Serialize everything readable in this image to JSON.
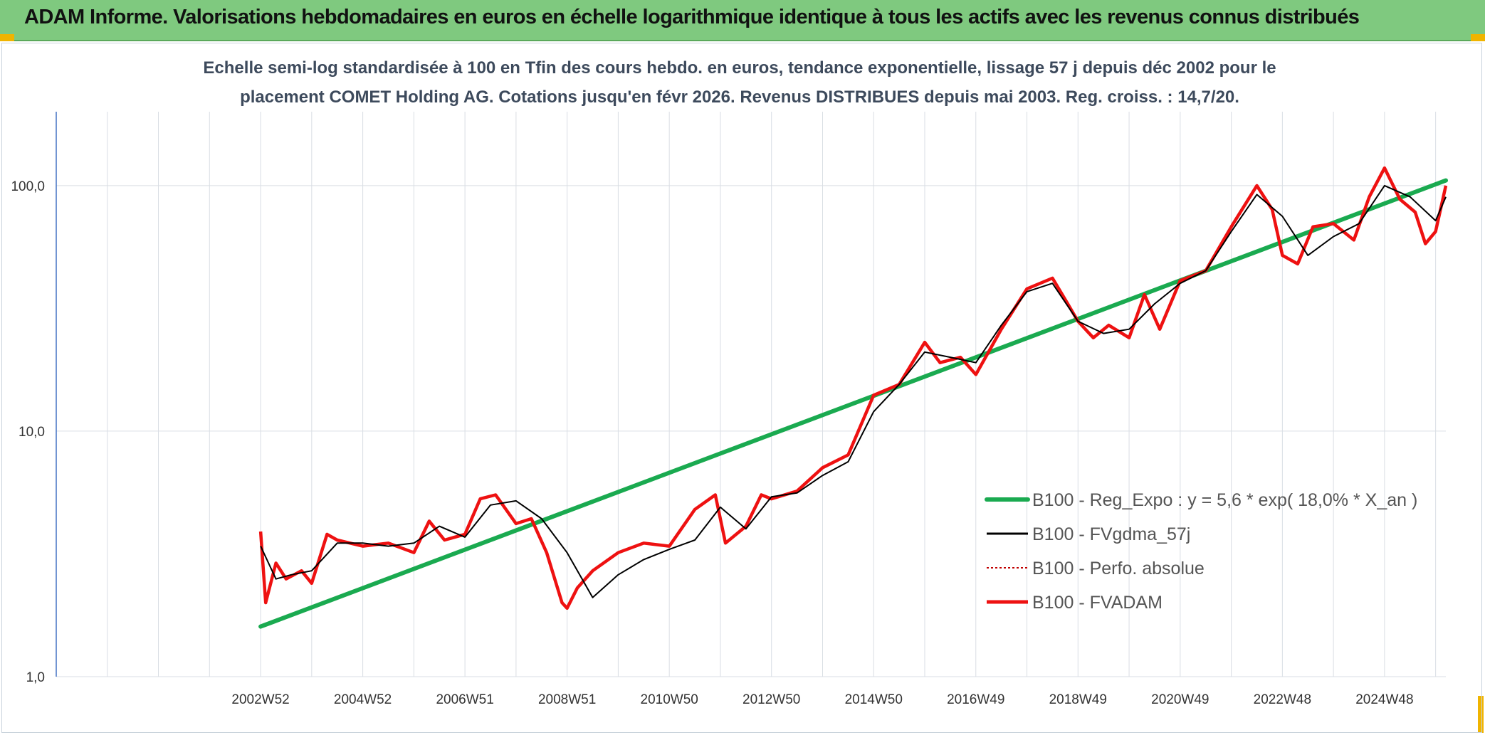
{
  "banner": {
    "title": "ADAM Informe. Valorisations hebdomadaires en euros en échelle logarithmique identique à tous les actifs avec les revenus connus distribués"
  },
  "colors": {
    "banner_bg": "#7fc97f",
    "trend": "#1aaa50",
    "smooth": "#000000",
    "perf": "#c00000",
    "fvadam": "#ee1111",
    "grid": "#d9dee4"
  },
  "chart_data": {
    "type": "line",
    "subtitle_lines": [
      "Echelle semi-log standardisée à 100 en Tfin des cours hebdo. en euros, tendance exponentielle, lissage 57 j depuis déc 2002 pour le",
      "placement COMET Holding AG. Cotations jusqu'en févr 2026. Revenus DISTRIBUES depuis mai 2003. Reg. croiss. : 14,7/20."
    ],
    "y_scale": "log",
    "ylim": [
      1,
      200
    ],
    "xlim": [
      1999.0,
      2026.2
    ],
    "y_ticks": [
      {
        "value": 1,
        "label": "1,0"
      },
      {
        "value": 10,
        "label": "10,0"
      },
      {
        "value": 100,
        "label": "100,0"
      }
    ],
    "x_tick_labels": [
      "2002W52",
      "2004W52",
      "2006W51",
      "2008W51",
      "2010W50",
      "2012W50",
      "2014W50",
      "2016W49",
      "2018W49",
      "2020W49",
      "2022W48",
      "2024W48"
    ],
    "x_tick_values": [
      2003.0,
      2005.0,
      2007.0,
      2009.0,
      2011.0,
      2013.0,
      2015.0,
      2017.0,
      2019.0,
      2021.0,
      2023.0,
      2025.0
    ],
    "grid": true,
    "legend_position": "bottom-right",
    "series": [
      {
        "name": "B100 - Reg_Expo : y = 5,6 * exp( 18,0% *  X_an )",
        "style": "trend",
        "x": [
          2003.0,
          2026.2
        ],
        "values": [
          1.6,
          105
        ]
      },
      {
        "name": "B100 - FVgdma_57j",
        "style": "smooth",
        "x": [
          2003.0,
          2003.3,
          2003.6,
          2004.0,
          2004.5,
          2005.0,
          2005.5,
          2006.0,
          2006.5,
          2007.0,
          2007.5,
          2008.0,
          2008.5,
          2009.0,
          2009.5,
          2010.0,
          2010.5,
          2011.0,
          2011.5,
          2012.0,
          2012.5,
          2013.0,
          2013.5,
          2014.0,
          2014.5,
          2015.0,
          2015.5,
          2016.0,
          2016.5,
          2017.0,
          2017.5,
          2018.0,
          2018.5,
          2019.0,
          2019.5,
          2020.0,
          2020.5,
          2021.0,
          2021.5,
          2022.0,
          2022.5,
          2023.0,
          2023.5,
          2024.0,
          2024.5,
          2025.0,
          2025.5,
          2026.0,
          2026.2
        ],
        "values": [
          3.4,
          2.5,
          2.6,
          2.7,
          3.5,
          3.5,
          3.4,
          3.5,
          4.1,
          3.7,
          5.0,
          5.2,
          4.4,
          3.2,
          2.1,
          2.6,
          3.0,
          3.3,
          3.6,
          4.9,
          4.0,
          5.4,
          5.6,
          6.6,
          7.5,
          12.0,
          15.5,
          21.0,
          20.0,
          19.0,
          27.0,
          37.0,
          40.0,
          28.0,
          25.0,
          26.0,
          33.0,
          40.0,
          45.0,
          65.0,
          92.0,
          75.0,
          52.0,
          62.0,
          70.0,
          100.0,
          90.0,
          72.0,
          90.0
        ]
      },
      {
        "name": "B100 - Perfo. absolue",
        "style": "perf",
        "x": [],
        "values": []
      },
      {
        "name": "B100 - FVADAM",
        "style": "fvadam",
        "x": [
          2003.0,
          2003.1,
          2003.3,
          2003.5,
          2003.8,
          2004.0,
          2004.3,
          2004.5,
          2005.0,
          2005.5,
          2006.0,
          2006.3,
          2006.6,
          2007.0,
          2007.3,
          2007.6,
          2008.0,
          2008.3,
          2008.6,
          2008.9,
          2009.0,
          2009.2,
          2009.5,
          2010.0,
          2010.5,
          2011.0,
          2011.5,
          2011.9,
          2012.1,
          2012.5,
          2012.8,
          2013.0,
          2013.5,
          2014.0,
          2014.5,
          2015.0,
          2015.5,
          2016.0,
          2016.3,
          2016.7,
          2017.0,
          2017.5,
          2018.0,
          2018.5,
          2018.8,
          2019.0,
          2019.3,
          2019.6,
          2020.0,
          2020.3,
          2020.6,
          2021.0,
          2021.5,
          2022.0,
          2022.5,
          2022.8,
          2023.0,
          2023.3,
          2023.6,
          2024.0,
          2024.4,
          2024.7,
          2025.0,
          2025.3,
          2025.6,
          2025.8,
          2026.0,
          2026.2
        ],
        "values": [
          3.9,
          2.0,
          2.9,
          2.5,
          2.7,
          2.4,
          3.8,
          3.6,
          3.4,
          3.5,
          3.2,
          4.3,
          3.6,
          3.8,
          5.3,
          5.5,
          4.2,
          4.4,
          3.2,
          2.0,
          1.9,
          2.3,
          2.7,
          3.2,
          3.5,
          3.4,
          4.8,
          5.5,
          3.5,
          4.1,
          5.5,
          5.3,
          5.7,
          7.1,
          8.0,
          14.0,
          15.5,
          23.0,
          19.0,
          20.0,
          17.0,
          26.0,
          38.0,
          42.0,
          33.0,
          28.0,
          24.0,
          27.0,
          24.0,
          36.0,
          26.0,
          41.0,
          45.0,
          68.0,
          100.0,
          80.0,
          52.0,
          48.0,
          68.0,
          70.0,
          60.0,
          90.0,
          118.0,
          88.0,
          78.0,
          58.0,
          65.0,
          100.0
        ]
      }
    ]
  }
}
